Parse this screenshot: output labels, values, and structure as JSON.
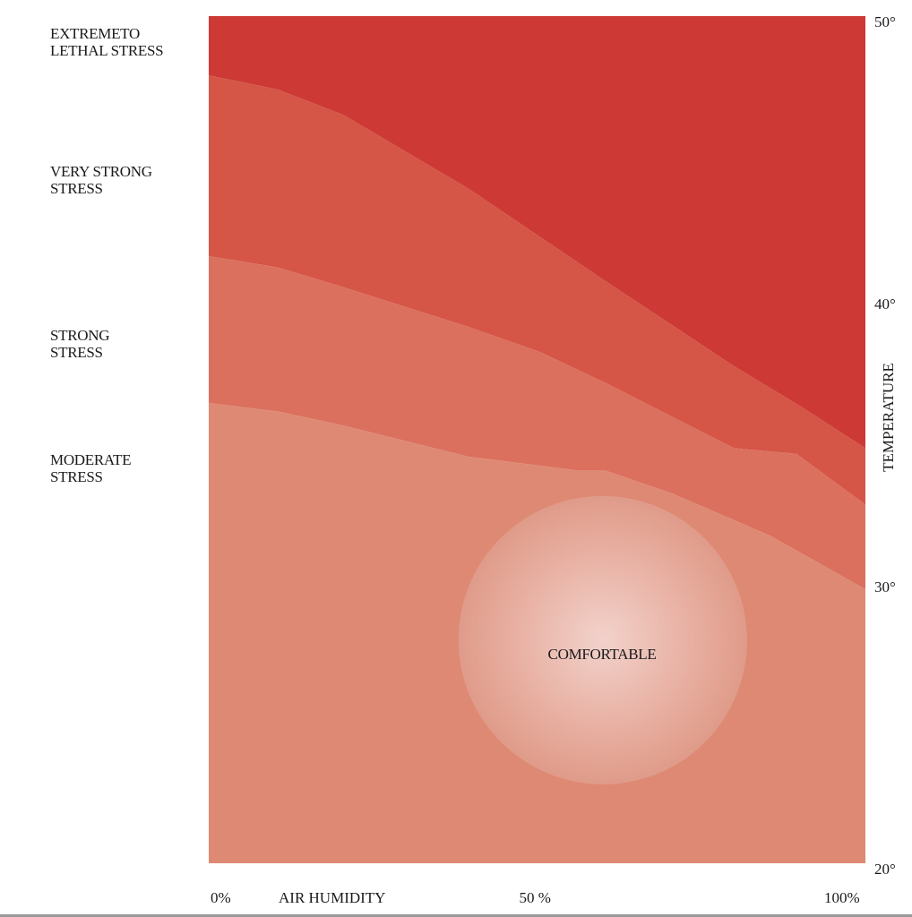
{
  "chart_data": {
    "type": "area",
    "title": "",
    "xlabel": "AIR HUMIDITY",
    "ylabel": "TEMPERATURE",
    "xlim": [
      0,
      100
    ],
    "ylim": [
      20,
      50
    ],
    "x_tick_labels": [
      {
        "x": 0,
        "label": "0%"
      },
      {
        "x": 50,
        "label": "50 %"
      },
      {
        "x": 100,
        "label": "100%"
      }
    ],
    "y_tick_labels": [
      {
        "y": 50,
        "label": "50°"
      },
      {
        "y": 40,
        "label": "40°"
      },
      {
        "y": 30,
        "label": "30°"
      },
      {
        "y": 20,
        "label": "20°"
      }
    ],
    "zones": [
      {
        "name": "EXTREMETO\nLETHAL STRESS",
        "color": "#cd3a36",
        "label_y": 49.4
      },
      {
        "name": "VERY STRONG\nSTRESS",
        "color": "#d55547",
        "label_y": 44.5
      },
      {
        "name": "STRONG\nSTRESS",
        "color": "#da705d",
        "label_y": 38.7
      },
      {
        "name": "MODERATE\nSTRESS",
        "color": "#de8974",
        "label_y": 34.3
      }
    ],
    "boundaries": [
      {
        "between": [
          "EXTREMETO\nLETHAL STRESS",
          "VERY STRONG\nSTRESS"
        ],
        "points": [
          [
            0,
            47.9
          ],
          [
            10.5,
            47.4
          ],
          [
            20.5,
            46.5
          ],
          [
            39.5,
            43.9
          ],
          [
            60.5,
            40.6
          ],
          [
            80,
            37.6
          ],
          [
            90,
            36.2
          ],
          [
            100,
            34.7
          ]
        ]
      },
      {
        "between": [
          "VERY STRONG\nSTRESS",
          "STRONG\nSTRESS"
        ],
        "points": [
          [
            0,
            41.5
          ],
          [
            10.5,
            41.1
          ],
          [
            20.5,
            40.4
          ],
          [
            39.5,
            39.0
          ],
          [
            50.5,
            38.1
          ],
          [
            60.5,
            37.0
          ],
          [
            80,
            34.7
          ],
          [
            89.5,
            34.5
          ],
          [
            100,
            32.7
          ]
        ]
      },
      {
        "between": [
          "STRONG\nSTRESS",
          "MODERATE\nSTRESS"
        ],
        "points": [
          [
            0,
            36.3
          ],
          [
            10.5,
            36.0
          ],
          [
            20.5,
            35.5
          ],
          [
            39.5,
            34.4
          ],
          [
            56.5,
            33.9
          ],
          [
            60.5,
            33.9
          ],
          [
            70.5,
            33.1
          ],
          [
            85.5,
            31.6
          ],
          [
            100,
            29.7
          ]
        ]
      }
    ],
    "comfort_zone": {
      "label": "COMFORTABLE",
      "center": [
        60,
        27.9
      ],
      "x_halfwidth": 22,
      "y_halfheight": 5.1,
      "tilt_deg": 40,
      "color": "#f2d2cb"
    },
    "grid": false,
    "legend": "none"
  }
}
